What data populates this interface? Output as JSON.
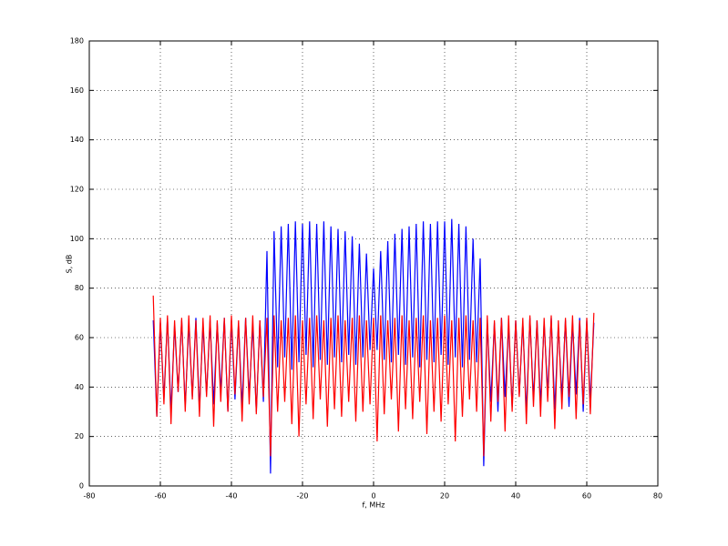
{
  "chart_data": {
    "type": "line",
    "xlabel": "f, MHz",
    "ylabel": "S, dB",
    "x": [
      -62,
      -61,
      -60,
      -59,
      -58,
      -57,
      -56,
      -55,
      -54,
      -53,
      -52,
      -51,
      -50,
      -49,
      -48,
      -47,
      -46,
      -45,
      -44,
      -43,
      -42,
      -41,
      -40,
      -39,
      -38,
      -37,
      -36,
      -35,
      -34,
      -33,
      -32,
      -31,
      -30,
      -29,
      -28,
      -27,
      -26,
      -25,
      -24,
      -23,
      -22,
      -21,
      -20,
      -19,
      -18,
      -17,
      -16,
      -15,
      -14,
      -13,
      -12,
      -11,
      -10,
      -9,
      -8,
      -7,
      -6,
      -5,
      -4,
      -3,
      -2,
      -1,
      0,
      1,
      2,
      3,
      4,
      5,
      6,
      7,
      8,
      9,
      10,
      11,
      12,
      13,
      14,
      15,
      16,
      17,
      18,
      19,
      20,
      21,
      22,
      23,
      24,
      25,
      26,
      27,
      28,
      29,
      30,
      31,
      32,
      33,
      34,
      35,
      36,
      37,
      38,
      39,
      40,
      41,
      42,
      43,
      44,
      45,
      46,
      47,
      48,
      49,
      50,
      51,
      52,
      53,
      54,
      55,
      56,
      57,
      58,
      59,
      60,
      61,
      62
    ],
    "series": [
      {
        "color": "#0000ff",
        "values": [
          67,
          28,
          66,
          35,
          68,
          30,
          65,
          38,
          67,
          32,
          66,
          36,
          68,
          31,
          65,
          37,
          67,
          33,
          66,
          38,
          68,
          30,
          67,
          35,
          66,
          32,
          68,
          36,
          65,
          30,
          67,
          34,
          95,
          5,
          103,
          48,
          105,
          52,
          106,
          47,
          107,
          50,
          106,
          53,
          107,
          48,
          106,
          51,
          107,
          49,
          105,
          52,
          104,
          50,
          103,
          53,
          101,
          49,
          98,
          52,
          94,
          55,
          88,
          55,
          95,
          51,
          99,
          50,
          102,
          53,
          104,
          49,
          105,
          52,
          106,
          48,
          107,
          51,
          106,
          50,
          107,
          53,
          107,
          49,
          108,
          52,
          106,
          48,
          105,
          51,
          100,
          50,
          92,
          8,
          67,
          34,
          66,
          30,
          68,
          36,
          65,
          32,
          67,
          37,
          66,
          30,
          68,
          35,
          67,
          33,
          66,
          38,
          68,
          31,
          65,
          36,
          67,
          32,
          66,
          37,
          68,
          30,
          67,
          34,
          66
        ]
      },
      {
        "color": "#ff0000",
        "values": [
          77,
          28,
          68,
          33,
          69,
          25,
          67,
          38,
          68,
          30,
          69,
          35,
          67,
          28,
          68,
          36,
          69,
          24,
          67,
          34,
          68,
          30,
          69,
          37,
          67,
          26,
          68,
          33,
          69,
          29,
          67,
          36,
          68,
          12,
          69,
          30,
          67,
          34,
          68,
          25,
          69,
          20,
          67,
          33,
          68,
          27,
          69,
          35,
          67,
          24,
          68,
          31,
          69,
          28,
          67,
          34,
          68,
          26,
          69,
          30,
          67,
          33,
          68,
          18,
          69,
          29,
          67,
          35,
          68,
          22,
          69,
          31,
          67,
          27,
          68,
          34,
          69,
          21,
          67,
          30,
          68,
          26,
          69,
          33,
          67,
          18,
          68,
          28,
          69,
          35,
          67,
          30,
          68,
          12,
          69,
          26,
          67,
          34,
          68,
          22,
          69,
          30,
          67,
          36,
          68,
          25,
          69,
          32,
          67,
          28,
          68,
          34,
          69,
          23,
          67,
          31,
          68,
          36,
          69,
          27,
          67,
          33,
          68,
          29,
          70
        ]
      }
    ],
    "xlim": [
      -80,
      80
    ],
    "ylim": [
      0,
      180
    ],
    "xticks": [
      -80,
      -60,
      -40,
      -20,
      0,
      20,
      40,
      60,
      80
    ],
    "yticks": [
      0,
      20,
      40,
      60,
      80,
      100,
      120,
      140,
      160,
      180
    ],
    "grid": true
  }
}
